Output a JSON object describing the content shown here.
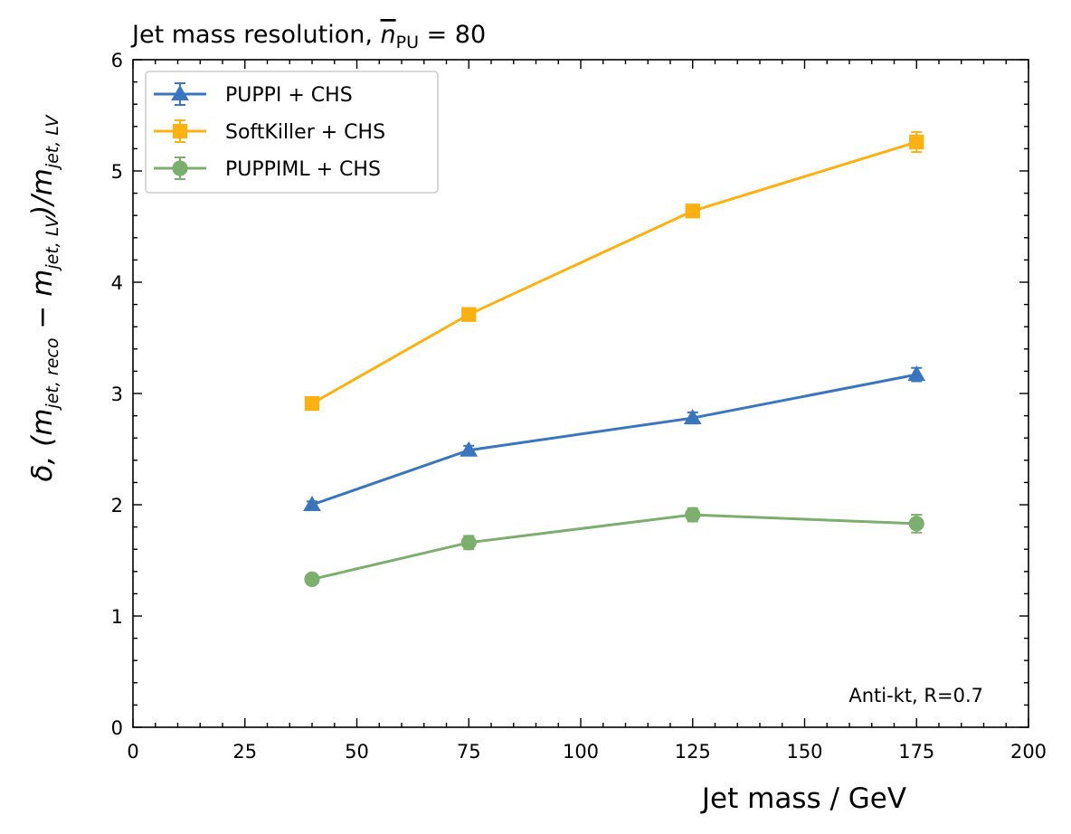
{
  "chart_data": {
    "type": "line",
    "title": "Jet mass resolution, ",
    "title_math": {
      "variable": "n",
      "subscript": "PU",
      "equals": " = 80"
    },
    "xlabel": "Jet mass / GeV",
    "ylabel": {
      "prefix": "δ, (m",
      "sub1": "jet, reco",
      "mid": " − m",
      "sub2": "jet, LV",
      "mid2": ")/m",
      "sub3": "jet, LV"
    },
    "xlim": [
      0,
      200
    ],
    "ylim": [
      0,
      6
    ],
    "xticks": [
      0,
      25,
      50,
      75,
      100,
      125,
      150,
      175,
      200
    ],
    "yticks": [
      0,
      1,
      2,
      3,
      4,
      5,
      6
    ],
    "x": [
      40,
      75,
      125,
      175
    ],
    "series": [
      {
        "name": "PUPPI + CHS",
        "color": "#3a76bd",
        "marker": "triangle",
        "values": [
          2.0,
          2.49,
          2.78,
          3.17
        ],
        "errors": [
          0.03,
          0.04,
          0.05,
          0.06
        ]
      },
      {
        "name": "SoftKiller + CHS",
        "color": "#fbb111",
        "marker": "square",
        "values": [
          2.91,
          3.71,
          4.64,
          5.26
        ],
        "errors": [
          0.04,
          0.05,
          0.05,
          0.09
        ]
      },
      {
        "name": "PUPPIML + CHS",
        "color": "#7caf6e",
        "marker": "circle",
        "values": [
          1.33,
          1.66,
          1.91,
          1.83
        ],
        "errors": [
          0.04,
          0.06,
          0.06,
          0.08
        ]
      }
    ],
    "annotation": "Anti-kt, R=0.7",
    "legend_position": "top-left",
    "grid": false
  }
}
